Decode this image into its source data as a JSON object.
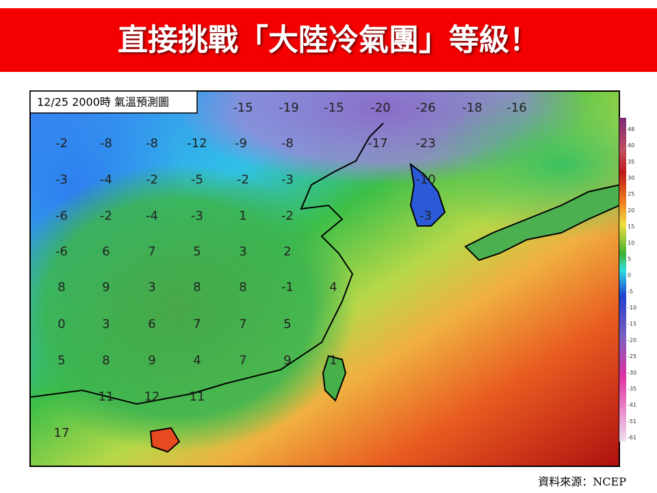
{
  "header": {
    "title": "直接挑戰「大陸冷氣團」等級！"
  },
  "map": {
    "label": "12/25 2000時  氣溫預測圖",
    "temperatures": [
      -15,
      -19,
      -15,
      -20,
      -26,
      -18,
      -16,
      -2,
      -8,
      -8,
      -12,
      -9,
      -8,
      -17,
      -23,
      -3,
      -4,
      -2,
      -5,
      -2,
      -3,
      -10,
      -6,
      -2,
      -4,
      -3,
      1,
      -2,
      -3,
      -6,
      6,
      7,
      5,
      3,
      2,
      8,
      9,
      3,
      8,
      8,
      -1,
      4,
      0,
      3,
      6,
      7,
      7,
      5,
      5,
      8,
      9,
      4,
      7,
      9,
      1,
      11,
      12,
      11,
      17
    ],
    "colorbar_ticks": [
      48,
      40,
      35,
      30,
      25,
      20,
      15,
      10,
      5,
      0,
      -5,
      -10,
      -15,
      -20,
      -25,
      -30,
      -35,
      -41,
      -51,
      -61
    ]
  },
  "source": "資料來源：NCEP"
}
